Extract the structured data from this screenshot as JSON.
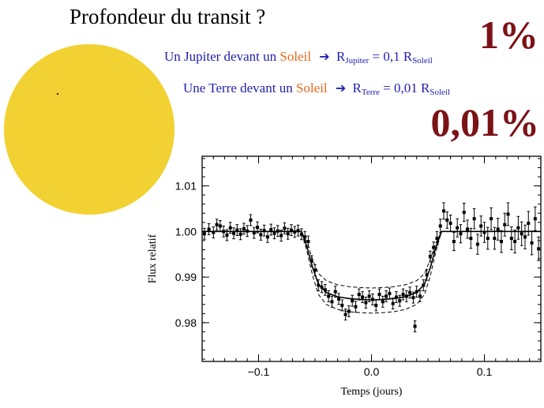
{
  "title": "Profondeur du transit ?",
  "jupiter_line": {
    "prefix": "Un Jupiter",
    "mid": "devant un",
    "star": "Soleil",
    "arrow_icon": "right-arrow-icon",
    "r": "R",
    "r_sub": "Jupiter",
    "eq": "= 0,1 R",
    "eq_sub": "Soleil"
  },
  "earth_line": {
    "prefix": "Une Terre",
    "mid": "devant un",
    "star": "Soleil",
    "arrow_icon": "right-arrow-icon",
    "r": "R",
    "r_sub": "Terre",
    "eq": "= 0,01 R",
    "eq_sub": "Soleil"
  },
  "depth_jupiter": "1%",
  "depth_earth": "0,01%",
  "colors": {
    "text_blue": "#2320b0",
    "text_orange": "#e46a1c",
    "depth_red": "#7a1216",
    "sun_yellow": "#f2d132"
  },
  "chart_data": {
    "type": "scatter",
    "xlabel": "Temps (jours)",
    "ylabel": "Flux relatif",
    "xlim": [
      -0.15,
      0.15
    ],
    "ylim": [
      0.9715,
      1.0165
    ],
    "xticks": [
      -0.1,
      0.0,
      0.1
    ],
    "xtick_labels": [
      "−0.1",
      "0.0",
      "0.1"
    ],
    "yticks": [
      0.98,
      0.99,
      1.0,
      1.01
    ],
    "ytick_labels": [
      "0.98",
      "0.99",
      "1.00",
      "1.01"
    ],
    "model": {
      "x": [
        -0.15,
        -0.062,
        -0.057,
        -0.052,
        -0.047,
        -0.04,
        -0.03,
        -0.02,
        -0.01,
        0.0,
        0.01,
        0.02,
        0.03,
        0.04,
        0.047,
        0.052,
        0.057,
        0.062,
        0.15
      ],
      "y": [
        1.0,
        1.0,
        0.9965,
        0.992,
        0.9885,
        0.9866,
        0.9857,
        0.9853,
        0.9851,
        0.985,
        0.9851,
        0.9853,
        0.9857,
        0.9866,
        0.9885,
        0.992,
        0.9965,
        1.0,
        1.0
      ]
    },
    "model_upper": {
      "x": [
        -0.15,
        -0.062,
        -0.057,
        -0.052,
        -0.047,
        -0.04,
        -0.03,
        -0.02,
        -0.01,
        0.0,
        0.01,
        0.02,
        0.03,
        0.04,
        0.047,
        0.052,
        0.057,
        0.062,
        0.15
      ],
      "y": [
        1.0,
        1.0,
        0.9975,
        0.9938,
        0.9908,
        0.9892,
        0.9883,
        0.9879,
        0.9877,
        0.9876,
        0.9877,
        0.9879,
        0.9883,
        0.9892,
        0.9908,
        0.9938,
        0.9975,
        1.0,
        1.0
      ]
    },
    "model_lower": {
      "x": [
        -0.15,
        -0.062,
        -0.057,
        -0.052,
        -0.047,
        -0.04,
        -0.03,
        -0.02,
        -0.01,
        0.0,
        0.01,
        0.02,
        0.03,
        0.04,
        0.047,
        0.052,
        0.057,
        0.062,
        0.15
      ],
      "y": [
        1.0,
        1.0,
        0.9955,
        0.9902,
        0.9862,
        0.984,
        0.9829,
        0.9824,
        0.9822,
        0.9821,
        0.9822,
        0.9824,
        0.9829,
        0.984,
        0.9862,
        0.9902,
        0.9955,
        1.0,
        1.0
      ]
    },
    "points": [
      {
        "x": -0.148,
        "y": 0.9995,
        "e": 0.0012
      },
      {
        "x": -0.144,
        "y": 1.0005,
        "e": 0.0012
      },
      {
        "x": -0.14,
        "y": 0.9998,
        "e": 0.0012
      },
      {
        "x": -0.137,
        "y": 1.0015,
        "e": 0.0012
      },
      {
        "x": -0.134,
        "y": 1.0012,
        "e": 0.0012
      },
      {
        "x": -0.131,
        "y": 1.0,
        "e": 0.0012
      },
      {
        "x": -0.128,
        "y": 0.9992,
        "e": 0.0012
      },
      {
        "x": -0.125,
        "y": 1.0008,
        "e": 0.0012
      },
      {
        "x": -0.122,
        "y": 0.9996,
        "e": 0.0012
      },
      {
        "x": -0.119,
        "y": 1.0003,
        "e": 0.0012
      },
      {
        "x": -0.116,
        "y": 0.9994,
        "e": 0.0012
      },
      {
        "x": -0.113,
        "y": 1.0006,
        "e": 0.0012
      },
      {
        "x": -0.11,
        "y": 1.0001,
        "e": 0.0012
      },
      {
        "x": -0.107,
        "y": 1.0025,
        "e": 0.0012
      },
      {
        "x": -0.104,
        "y": 0.9997,
        "e": 0.0012
      },
      {
        "x": -0.101,
        "y": 1.0009,
        "e": 0.0012
      },
      {
        "x": -0.098,
        "y": 0.9993,
        "e": 0.0012
      },
      {
        "x": -0.095,
        "y": 1.0002,
        "e": 0.0012
      },
      {
        "x": -0.092,
        "y": 0.9988,
        "e": 0.0012
      },
      {
        "x": -0.089,
        "y": 1.0004,
        "e": 0.0012
      },
      {
        "x": -0.086,
        "y": 0.9996,
        "e": 0.0012
      },
      {
        "x": -0.083,
        "y": 1.0001,
        "e": 0.0012
      },
      {
        "x": -0.08,
        "y": 0.9991,
        "e": 0.0012
      },
      {
        "x": -0.077,
        "y": 1.0007,
        "e": 0.0012
      },
      {
        "x": -0.074,
        "y": 0.9995,
        "e": 0.0012
      },
      {
        "x": -0.071,
        "y": 1.0003,
        "e": 0.0012
      },
      {
        "x": -0.068,
        "y": 0.9999,
        "e": 0.0012
      },
      {
        "x": -0.065,
        "y": 1.0002,
        "e": 0.0012
      },
      {
        "x": -0.062,
        "y": 0.9994,
        "e": 0.0012
      },
      {
        "x": -0.059,
        "y": 0.9988,
        "e": 0.0012
      },
      {
        "x": -0.056,
        "y": 0.9978,
        "e": 0.0012
      },
      {
        "x": -0.053,
        "y": 0.9935,
        "e": 0.0012
      },
      {
        "x": -0.05,
        "y": 0.9915,
        "e": 0.0012
      },
      {
        "x": -0.047,
        "y": 0.9882,
        "e": 0.0012
      },
      {
        "x": -0.044,
        "y": 0.9878,
        "e": 0.0012
      },
      {
        "x": -0.041,
        "y": 0.9872,
        "e": 0.0012
      },
      {
        "x": -0.038,
        "y": 0.9858,
        "e": 0.0012
      },
      {
        "x": -0.035,
        "y": 0.9846,
        "e": 0.0012
      },
      {
        "x": -0.032,
        "y": 0.9868,
        "e": 0.0012
      },
      {
        "x": -0.029,
        "y": 0.9852,
        "e": 0.0012
      },
      {
        "x": -0.026,
        "y": 0.9838,
        "e": 0.0012
      },
      {
        "x": -0.023,
        "y": 0.9818,
        "e": 0.0012
      },
      {
        "x": -0.02,
        "y": 0.9825,
        "e": 0.0012
      },
      {
        "x": -0.017,
        "y": 0.9848,
        "e": 0.0012
      },
      {
        "x": -0.014,
        "y": 0.9835,
        "e": 0.0012
      },
      {
        "x": -0.011,
        "y": 0.9862,
        "e": 0.0012
      },
      {
        "x": -0.008,
        "y": 0.9856,
        "e": 0.0012
      },
      {
        "x": -0.005,
        "y": 0.9844,
        "e": 0.0012
      },
      {
        "x": -0.002,
        "y": 0.9858,
        "e": 0.0012
      },
      {
        "x": 0.001,
        "y": 0.9851,
        "e": 0.0012
      },
      {
        "x": 0.004,
        "y": 0.9838,
        "e": 0.0012
      },
      {
        "x": 0.007,
        "y": 0.9862,
        "e": 0.0012
      },
      {
        "x": 0.01,
        "y": 0.9846,
        "e": 0.0012
      },
      {
        "x": 0.013,
        "y": 0.9858,
        "e": 0.0012
      },
      {
        "x": 0.016,
        "y": 0.9864,
        "e": 0.0012
      },
      {
        "x": 0.019,
        "y": 0.9842,
        "e": 0.0012
      },
      {
        "x": 0.022,
        "y": 0.9856,
        "e": 0.0012
      },
      {
        "x": 0.025,
        "y": 0.9848,
        "e": 0.0012
      },
      {
        "x": 0.028,
        "y": 0.9862,
        "e": 0.0012
      },
      {
        "x": 0.031,
        "y": 0.9858,
        "e": 0.0012
      },
      {
        "x": 0.034,
        "y": 0.9866,
        "e": 0.0012
      },
      {
        "x": 0.037,
        "y": 0.9855,
        "e": 0.0012
      },
      {
        "x": 0.04,
        "y": 0.9868,
        "e": 0.0012
      },
      {
        "x": 0.0385,
        "y": 0.9792,
        "e": 0.0012
      },
      {
        "x": 0.043,
        "y": 0.9858,
        "e": 0.0012
      },
      {
        "x": 0.046,
        "y": 0.9882,
        "e": 0.0012
      },
      {
        "x": 0.049,
        "y": 0.9905,
        "e": 0.0012
      },
      {
        "x": 0.052,
        "y": 0.9945,
        "e": 0.0012
      },
      {
        "x": 0.055,
        "y": 0.9965,
        "e": 0.0012
      },
      {
        "x": 0.058,
        "y": 0.9985,
        "e": 0.0015
      },
      {
        "x": 0.061,
        "y": 1.0012,
        "e": 0.0015
      },
      {
        "x": 0.064,
        "y": 1.0045,
        "e": 0.0018
      },
      {
        "x": 0.067,
        "y": 1.0025,
        "e": 0.0018
      },
      {
        "x": 0.07,
        "y": 1.0018,
        "e": 0.0018
      },
      {
        "x": 0.073,
        "y": 0.9978,
        "e": 0.002
      },
      {
        "x": 0.076,
        "y": 1.0008,
        "e": 0.002
      },
      {
        "x": 0.079,
        "y": 0.9995,
        "e": 0.002
      },
      {
        "x": 0.082,
        "y": 1.0042,
        "e": 0.002
      },
      {
        "x": 0.085,
        "y": 1.0005,
        "e": 0.002
      },
      {
        "x": 0.088,
        "y": 0.9985,
        "e": 0.0022
      },
      {
        "x": 0.091,
        "y": 1.0028,
        "e": 0.0022
      },
      {
        "x": 0.094,
        "y": 0.9972,
        "e": 0.0022
      },
      {
        "x": 0.097,
        "y": 1.0012,
        "e": 0.0022
      },
      {
        "x": 0.1,
        "y": 0.9998,
        "e": 0.0022
      },
      {
        "x": 0.103,
        "y": 0.9985,
        "e": 0.0024
      },
      {
        "x": 0.106,
        "y": 1.0028,
        "e": 0.0024
      },
      {
        "x": 0.109,
        "y": 0.9985,
        "e": 0.0024
      },
      {
        "x": 0.112,
        "y": 1.0005,
        "e": 0.0024
      },
      {
        "x": 0.115,
        "y": 0.9978,
        "e": 0.0024
      },
      {
        "x": 0.118,
        "y": 1.0015,
        "e": 0.0025
      },
      {
        "x": 0.121,
        "y": 1.0038,
        "e": 0.0025
      },
      {
        "x": 0.124,
        "y": 0.9985,
        "e": 0.0025
      },
      {
        "x": 0.127,
        "y": 0.9978,
        "e": 0.0025
      },
      {
        "x": 0.13,
        "y": 1.0008,
        "e": 0.0025
      },
      {
        "x": 0.133,
        "y": 0.9995,
        "e": 0.0026
      },
      {
        "x": 0.136,
        "y": 0.9988,
        "e": 0.0026
      },
      {
        "x": 0.139,
        "y": 1.0018,
        "e": 0.0026
      },
      {
        "x": 0.142,
        "y": 0.9975,
        "e": 0.0026
      },
      {
        "x": 0.145,
        "y": 1.0028,
        "e": 0.0026
      },
      {
        "x": 0.148,
        "y": 0.9962,
        "e": 0.0026
      }
    ],
    "legend": "none",
    "grid": false
  }
}
